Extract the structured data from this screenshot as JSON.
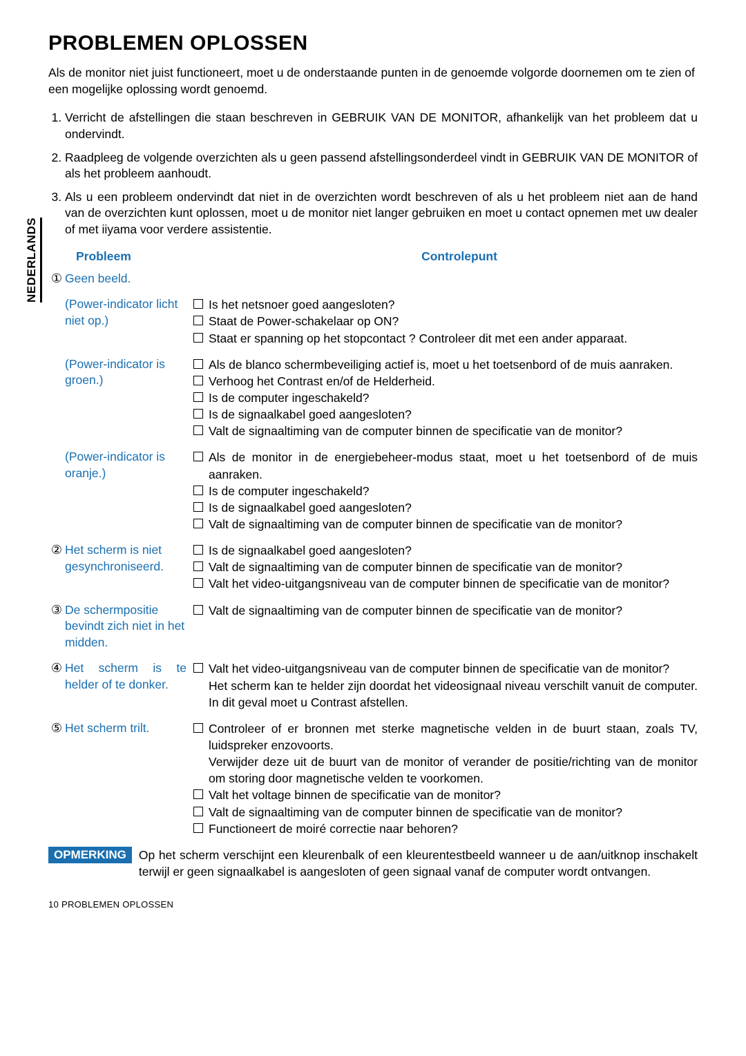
{
  "sidetab": "NEDERLANDS",
  "title": "PROBLEMEN OPLOSSEN",
  "intro": "Als de monitor niet juist functioneert, moet u de onderstaande punten in de genoemde volgorde doornemen om te zien of een mogelijke oplossing wordt genoemd.",
  "steps": [
    "Verricht de afstellingen die staan beschreven in GEBRUIK VAN DE MONITOR, afhankelijk van het probleem dat u ondervindt.",
    "Raadpleeg de volgende overzichten als u geen passend afstellingsonderdeel vindt in GEBRUIK VAN DE MONITOR of als het probleem aanhoudt.",
    "Als u een probleem ondervindt dat niet in de overzichten wordt beschreven of als u het probleem niet aan de hand van de overzichten kunt oplossen, moet u de monitor niet langer gebruiken en moet u contact opnemen met uw dealer of met iiyama voor verdere assistentie."
  ],
  "colheads": {
    "a": "Probleem",
    "b": "Controlepunt"
  },
  "rows": [
    {
      "num": "①",
      "problem": "Geen beeld.",
      "ctrl": []
    },
    {
      "num": "",
      "problem": "(Power-indicator licht niet op.)",
      "ctrl": [
        {
          "c": true,
          "t": "Is het netsnoer goed aangesloten?"
        },
        {
          "c": true,
          "t": "Staat de Power-schakelaar op ON?"
        },
        {
          "c": true,
          "t": "Staat er spanning op het stopcontact ? Controleer dit met een ander apparaat."
        }
      ]
    },
    {
      "num": "",
      "problem": "(Power-indicator is groen.)",
      "ctrl": [
        {
          "c": true,
          "t": "Als de blanco schermbeveiliging actief is, moet u het toetsenbord of de muis aanraken."
        },
        {
          "c": true,
          "t": "Verhoog het Contrast en/of de Helderheid."
        },
        {
          "c": true,
          "t": "Is de computer ingeschakeld?"
        },
        {
          "c": true,
          "t": "Is de signaalkabel goed aangesloten?"
        },
        {
          "c": true,
          "t": "Valt de signaaltiming van de computer binnen de specificatie van de monitor?"
        }
      ]
    },
    {
      "num": "",
      "problem": "(Power-indicator is oranje.)",
      "ctrl": [
        {
          "c": true,
          "t": "Als de monitor in de energiebeheer-modus staat, moet u het toetsenbord of de muis aanraken."
        },
        {
          "c": true,
          "t": "Is de computer ingeschakeld?"
        },
        {
          "c": true,
          "t": "Is de signaalkabel goed aangesloten?"
        },
        {
          "c": true,
          "t": "Valt de signaaltiming van de computer binnen de specificatie van de monitor?"
        }
      ]
    },
    {
      "num": "②",
      "problem": "Het scherm is niet gesynchroniseerd.",
      "ctrl": [
        {
          "c": true,
          "t": "Is de signaalkabel goed aangesloten?"
        },
        {
          "c": true,
          "t": "Valt de signaaltiming van de computer binnen de specificatie van de monitor?"
        },
        {
          "c": true,
          "t": "Valt het video-uitgangsniveau van de computer binnen de specificatie van de monitor?"
        }
      ]
    },
    {
      "num": "③",
      "problem": "De schermpositie bevindt zich niet in het midden.",
      "ctrl": [
        {
          "c": true,
          "t": "Valt de signaaltiming van de computer binnen de specificatie van de monitor?"
        }
      ]
    },
    {
      "num": "④",
      "problem": "Het scherm is te helder of te donker.",
      "ctrl": [
        {
          "c": true,
          "t": "Valt het video-uitgangsniveau van de computer binnen de specificatie van de monitor?"
        },
        {
          "c": false,
          "t": "Het scherm kan te helder zijn doordat het videosignaal niveau verschilt vanuit de computer. In dit geval moet u Contrast afstellen."
        }
      ]
    },
    {
      "num": "⑤",
      "problem": "Het scherm trilt.",
      "ctrl": [
        {
          "c": true,
          "t": "Controleer of er bronnen met sterke magnetische velden in de buurt staan, zoals TV, luidspreker enzovoorts."
        },
        {
          "c": false,
          "t": "Verwijder deze uit de buurt van de monitor of verander de positie/richting van de monitor om storing door magnetische velden te voorkomen."
        },
        {
          "c": true,
          "t": "Valt het voltage binnen de specificatie van de monitor?"
        },
        {
          "c": true,
          "t": "Valt de signaaltiming van de computer binnen de specificatie van de monitor?"
        },
        {
          "c": true,
          "t": "Functioneert de moiré correctie naar behoren?"
        }
      ]
    }
  ],
  "note": {
    "tag": "OPMERKING",
    "text": "Op het scherm verschijnt een kleurenbalk of een kleurentestbeeld wanneer u de aan/uitknop inschakelt terwijl er geen signaalkabel is aangesloten of geen signaal vanaf de computer wordt ontvangen."
  },
  "footer": "10    PROBLEMEN OPLOSSEN"
}
